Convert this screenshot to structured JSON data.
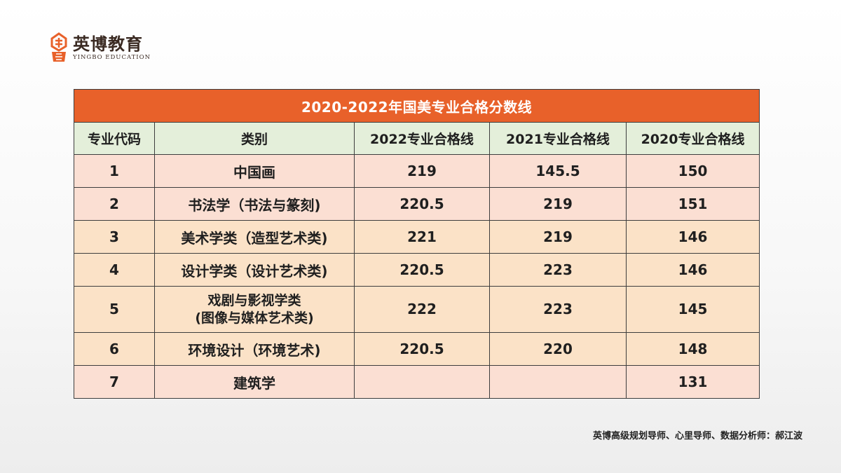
{
  "logo": {
    "name_cn": "英博教育",
    "name_en": "YINGBO EDUCATION",
    "brand_color": "#e8612a"
  },
  "table": {
    "title": "2020-2022年国美专业合格分数线",
    "headers": [
      "专业代码",
      "类别",
      "2022专业合格线",
      "2021专业合格线",
      "2020专业合格线"
    ],
    "rows": [
      {
        "code": "1",
        "category": "中国画",
        "s2022": "219",
        "s2021": "145.5",
        "s2020": "150"
      },
      {
        "code": "2",
        "category": "书法学（书法与篆刻)",
        "s2022": "220.5",
        "s2021": "219",
        "s2020": "151"
      },
      {
        "code": "3",
        "category": "美术学类（造型艺术类)",
        "s2022": "221",
        "s2021": "219",
        "s2020": "146"
      },
      {
        "code": "4",
        "category": "设计学类（设计艺术类)",
        "s2022": "220.5",
        "s2021": "223",
        "s2020": "146"
      },
      {
        "code": "5",
        "category_line1": "戏剧与影视学类",
        "category_line2": "(图像与媒体艺术类)",
        "s2022": "222",
        "s2021": "223",
        "s2020": "145"
      },
      {
        "code": "6",
        "category": "环境设计（环境艺术)",
        "s2022": "220.5",
        "s2021": "220",
        "s2020": "148"
      },
      {
        "code": "7",
        "category": "建筑学",
        "s2022": "",
        "s2021": "",
        "s2020": "131"
      }
    ],
    "colors": {
      "title_bg": "#e8612a",
      "header_bg": "#e4efda",
      "row_pink": "#fbdfd3",
      "row_peach": "#fbe2c7"
    }
  },
  "footer": {
    "credit": "英博高级规划导师、心里导师、数据分析师：郝江波"
  }
}
